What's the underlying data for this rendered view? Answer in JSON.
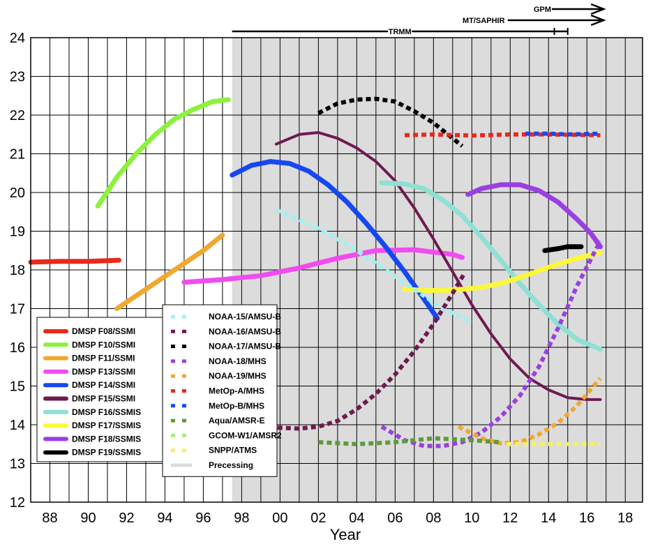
{
  "chart_data": {
    "type": "line",
    "title": "",
    "xlabel": "Year",
    "ylabel": "",
    "xlim": [
      1987,
      2018.9
    ],
    "ylim": [
      12,
      24
    ],
    "xtick_values": [
      1988,
      1990,
      1992,
      1994,
      1996,
      1998,
      2000,
      2002,
      2004,
      2006,
      2008,
      2010,
      2012,
      2014,
      2016,
      2018
    ],
    "xtick_labels": [
      "88",
      "90",
      "92",
      "94",
      "96",
      "98",
      "00",
      "02",
      "04",
      "06",
      "08",
      "10",
      "12",
      "14",
      "16",
      "18"
    ],
    "ytick_values": [
      12,
      13,
      14,
      15,
      16,
      17,
      18,
      19,
      20,
      21,
      22,
      23,
      24
    ],
    "ytick_labels": [
      "12",
      "13",
      "14",
      "15",
      "16",
      "17",
      "18",
      "19",
      "20",
      "21",
      "22",
      "23",
      "24"
    ],
    "grid": true,
    "shaded_region": {
      "x": [
        1997.5,
        2018.9
      ],
      "color": "#dcdcdc",
      "label": "Precessing"
    },
    "missions": [
      {
        "label": "GPM",
        "x": [
          2014.1,
          2016.8
        ],
        "row": 0,
        "arrow": true,
        "end_ticks": []
      },
      {
        "label": "MT/SAPHIR",
        "x": [
          2011.8,
          2016.8
        ],
        "row": 1,
        "arrow": true,
        "end_ticks": []
      },
      {
        "label": "TRMM",
        "x": [
          1997.5,
          2015.0
        ],
        "row": 2,
        "arrow": false,
        "end_ticks": [
          2014.3,
          2015.0
        ]
      }
    ],
    "legend_left_position": "bottom-left",
    "legend_right_position": "bottom-center",
    "series": [
      {
        "name": "DMSP F08/SSMI",
        "color": "#e8291c",
        "style": "solid",
        "group": "left",
        "x": [
          1987.0,
          1988.5,
          1990.0,
          1991.6
        ],
        "y": [
          18.2,
          18.22,
          18.22,
          18.25
        ]
      },
      {
        "name": "DMSP F10/SSMI",
        "color": "#8cf23c",
        "style": "solid",
        "group": "left",
        "x": [
          1990.5,
          1991.5,
          1992.5,
          1993.5,
          1994.5,
          1995.5,
          1996.5,
          1997.3
        ],
        "y": [
          19.65,
          20.4,
          21.0,
          21.5,
          21.9,
          22.15,
          22.35,
          22.4
        ]
      },
      {
        "name": "DMSP F11/SSMI",
        "color": "#f0a830",
        "style": "solid",
        "group": "left",
        "x": [
          1991.5,
          1993.0,
          1994.5,
          1996.0,
          1997.0
        ],
        "y": [
          17.0,
          17.5,
          18.0,
          18.5,
          18.9
        ]
      },
      {
        "name": "DMSP F13/SSMI",
        "color": "#f04cf0",
        "style": "solid",
        "group": "left",
        "x": [
          1995.0,
          1997.0,
          1999.0,
          2001.0,
          2003.0,
          2005.0,
          2007.0,
          2009.0,
          2009.5
        ],
        "y": [
          17.68,
          17.75,
          17.85,
          18.05,
          18.3,
          18.5,
          18.52,
          18.4,
          18.32
        ]
      },
      {
        "name": "DMSP F14/SSMI",
        "color": "#1648f0",
        "style": "solid",
        "group": "left",
        "x": [
          1997.5,
          1998.5,
          1999.5,
          2000.5,
          2001.5,
          2002.5,
          2003.5,
          2004.5,
          2005.5,
          2006.5,
          2007.5,
          2008.2
        ],
        "y": [
          20.45,
          20.7,
          20.8,
          20.75,
          20.55,
          20.2,
          19.75,
          19.2,
          18.6,
          17.95,
          17.25,
          16.75
        ]
      },
      {
        "name": "DMSP F15/SSMI",
        "color": "#6e1a50",
        "style": "solid",
        "group": "left",
        "x": [
          1999.8,
          2001.0,
          2002.0,
          2003.0,
          2004.0,
          2005.0,
          2006.0,
          2007.0,
          2008.0,
          2009.0,
          2010.0,
          2011.0,
          2012.0,
          2013.0,
          2014.0,
          2015.0,
          2016.0,
          2016.7
        ],
        "y": [
          21.25,
          21.5,
          21.55,
          21.4,
          21.15,
          20.8,
          20.3,
          19.6,
          18.8,
          17.95,
          17.1,
          16.35,
          15.7,
          15.2,
          14.9,
          14.7,
          14.65,
          14.65
        ]
      },
      {
        "name": "DMSP F16/SSMIS",
        "color": "#8ee0d2",
        "style": "solid",
        "group": "left",
        "x": [
          2005.3,
          2006.5,
          2007.5,
          2008.5,
          2009.5,
          2010.5,
          2011.5,
          2012.5,
          2013.5,
          2014.5,
          2015.5,
          2016.7
        ],
        "y": [
          20.25,
          20.22,
          20.1,
          19.8,
          19.4,
          18.85,
          18.25,
          17.65,
          17.1,
          16.6,
          16.2,
          15.95
        ]
      },
      {
        "name": "DMSP F17/SSMIS",
        "color": "#fbf83a",
        "style": "solid",
        "group": "left",
        "x": [
          2006.5,
          2007.5,
          2008.5,
          2009.5,
          2010.5,
          2011.5,
          2012.5,
          2013.5,
          2014.5,
          2015.5,
          2016.7
        ],
        "y": [
          17.5,
          17.47,
          17.47,
          17.5,
          17.55,
          17.65,
          17.8,
          17.98,
          18.15,
          18.3,
          18.45
        ]
      },
      {
        "name": "DMSP F18/SSMIS",
        "color": "#9a3fe0",
        "style": "solid",
        "group": "left",
        "x": [
          2009.8,
          2010.5,
          2011.5,
          2012.5,
          2013.5,
          2014.5,
          2015.5,
          2016.2,
          2016.7
        ],
        "y": [
          19.95,
          20.1,
          20.2,
          20.2,
          20.05,
          19.75,
          19.3,
          18.95,
          18.6
        ]
      },
      {
        "name": "DMSP F19/SSMIS",
        "color": "#000000",
        "style": "solid",
        "group": "left",
        "x": [
          2013.8,
          2014.5,
          2015.0,
          2015.7
        ],
        "y": [
          18.5,
          18.55,
          18.6,
          18.6
        ]
      },
      {
        "name": "NOAA-15/AMSU-B",
        "color": "#9ff2f2",
        "style": "dashed",
        "group": "right",
        "x": [
          1999.8,
          2001.0,
          2002.5,
          2004.0,
          2005.5,
          2007.0,
          2008.5,
          2010.0
        ],
        "y": [
          19.55,
          19.3,
          18.95,
          18.5,
          18.0,
          17.5,
          17.0,
          16.65
        ]
      },
      {
        "name": "NOAA-16/AMSU-B",
        "color": "#6e1a50",
        "style": "dashed",
        "group": "right",
        "x": [
          1999.0,
          2000.0,
          2001.0,
          2002.0,
          2003.0,
          2004.0,
          2005.0,
          2006.0,
          2007.0,
          2008.0,
          2009.0,
          2009.6
        ],
        "y": [
          13.95,
          13.92,
          13.9,
          13.95,
          14.1,
          14.4,
          14.8,
          15.3,
          15.9,
          16.6,
          17.4,
          17.9
        ]
      },
      {
        "name": "NOAA-17/AMSU-B",
        "color": "#000000",
        "style": "dashed",
        "group": "right",
        "x": [
          2002.0,
          2003.0,
          2004.0,
          2005.0,
          2006.0,
          2007.0,
          2008.0,
          2009.0,
          2009.5
        ],
        "y": [
          22.05,
          22.3,
          22.4,
          22.42,
          22.35,
          22.1,
          21.8,
          21.4,
          21.2
        ]
      },
      {
        "name": "NOAA-18/MHS",
        "color": "#9a3fe0",
        "style": "dashed",
        "group": "right",
        "x": [
          2005.3,
          2006.5,
          2007.5,
          2008.5,
          2009.5,
          2010.5,
          2011.5,
          2012.5,
          2013.5,
          2014.5,
          2015.5,
          2016.7
        ],
        "y": [
          13.95,
          13.6,
          13.45,
          13.45,
          13.55,
          13.8,
          14.2,
          14.75,
          15.5,
          16.5,
          17.6,
          18.75
        ]
      },
      {
        "name": "NOAA-19/MHS",
        "color": "#f0a830",
        "style": "dashed",
        "group": "right",
        "x": [
          2009.3,
          2010.5,
          2011.5,
          2012.5,
          2013.5,
          2014.5,
          2015.5,
          2016.7
        ],
        "y": [
          13.95,
          13.65,
          13.52,
          13.55,
          13.75,
          14.05,
          14.5,
          15.2
        ]
      },
      {
        "name": "MetOp-A/MHS",
        "color": "#e8291c",
        "style": "dashed",
        "group": "right",
        "x": [
          2006.5,
          2008.0,
          2010.0,
          2012.0,
          2014.0,
          2016.7
        ],
        "y": [
          21.48,
          21.5,
          21.47,
          21.5,
          21.5,
          21.48
        ]
      },
      {
        "name": "MetOp-B/MHS",
        "color": "#1648f0",
        "style": "dashed",
        "group": "right",
        "x": [
          2012.8,
          2014.0,
          2015.0,
          2016.7
        ],
        "y": [
          21.52,
          21.52,
          21.5,
          21.52
        ]
      },
      {
        "name": "Aqua/AMSR-E",
        "color": "#5e9a3a",
        "style": "dashed",
        "group": "right",
        "x": [
          2002.0,
          2004.0,
          2006.0,
          2008.0,
          2010.0,
          2011.4
        ],
        "y": [
          13.55,
          13.5,
          13.55,
          13.65,
          13.6,
          13.55
        ]
      },
      {
        "name": "GCOM-W1/AMSR2",
        "color": "#a6f07a",
        "style": "dashed",
        "group": "right",
        "x": [],
        "y": []
      },
      {
        "name": "SNPP/ATMS",
        "color": "#f4f066",
        "style": "dashed",
        "group": "right",
        "x": [
          2011.8,
          2013.0,
          2014.5,
          2016.7
        ],
        "y": [
          13.5,
          13.5,
          13.5,
          13.5
        ]
      }
    ]
  }
}
